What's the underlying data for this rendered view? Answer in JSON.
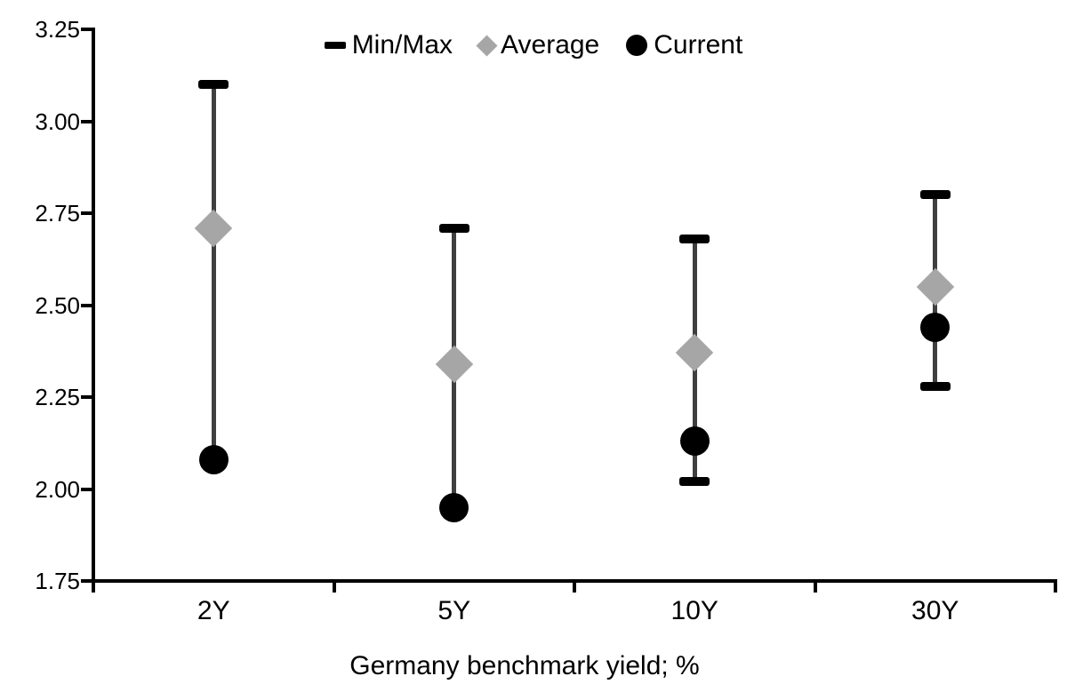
{
  "chart_data": {
    "type": "scatter",
    "subtype": "min-max-range-dot",
    "title": "",
    "xlabel": "Germany benchmark yield; %",
    "ylabel": "",
    "categories": [
      "2Y",
      "5Y",
      "10Y",
      "30Y"
    ],
    "series": [
      {
        "name": "Min/Max",
        "marker": "dash",
        "color": "#000000",
        "min": [
          2.08,
          1.95,
          2.02,
          2.28
        ],
        "max": [
          3.1,
          2.71,
          2.68,
          2.8
        ],
        "min_cap_visible": [
          false,
          false,
          true,
          true
        ]
      },
      {
        "name": "Average",
        "marker": "diamond",
        "color": "#a6a6a6",
        "values": [
          2.71,
          2.34,
          2.37,
          2.55
        ]
      },
      {
        "name": "Current",
        "marker": "circle",
        "color": "#000000",
        "values": [
          2.08,
          1.95,
          2.13,
          2.44
        ]
      }
    ],
    "ylim": [
      1.75,
      3.25
    ],
    "ytick_labels": [
      "3.25",
      "3.00",
      "2.75",
      "2.50",
      "2.25",
      "2.00",
      "1.75"
    ],
    "grid": false,
    "legend_position": "top-center",
    "colors": {
      "range_line": "#3f3f3f",
      "axis": "#000000",
      "text": "#000000",
      "background": "#ffffff"
    }
  }
}
